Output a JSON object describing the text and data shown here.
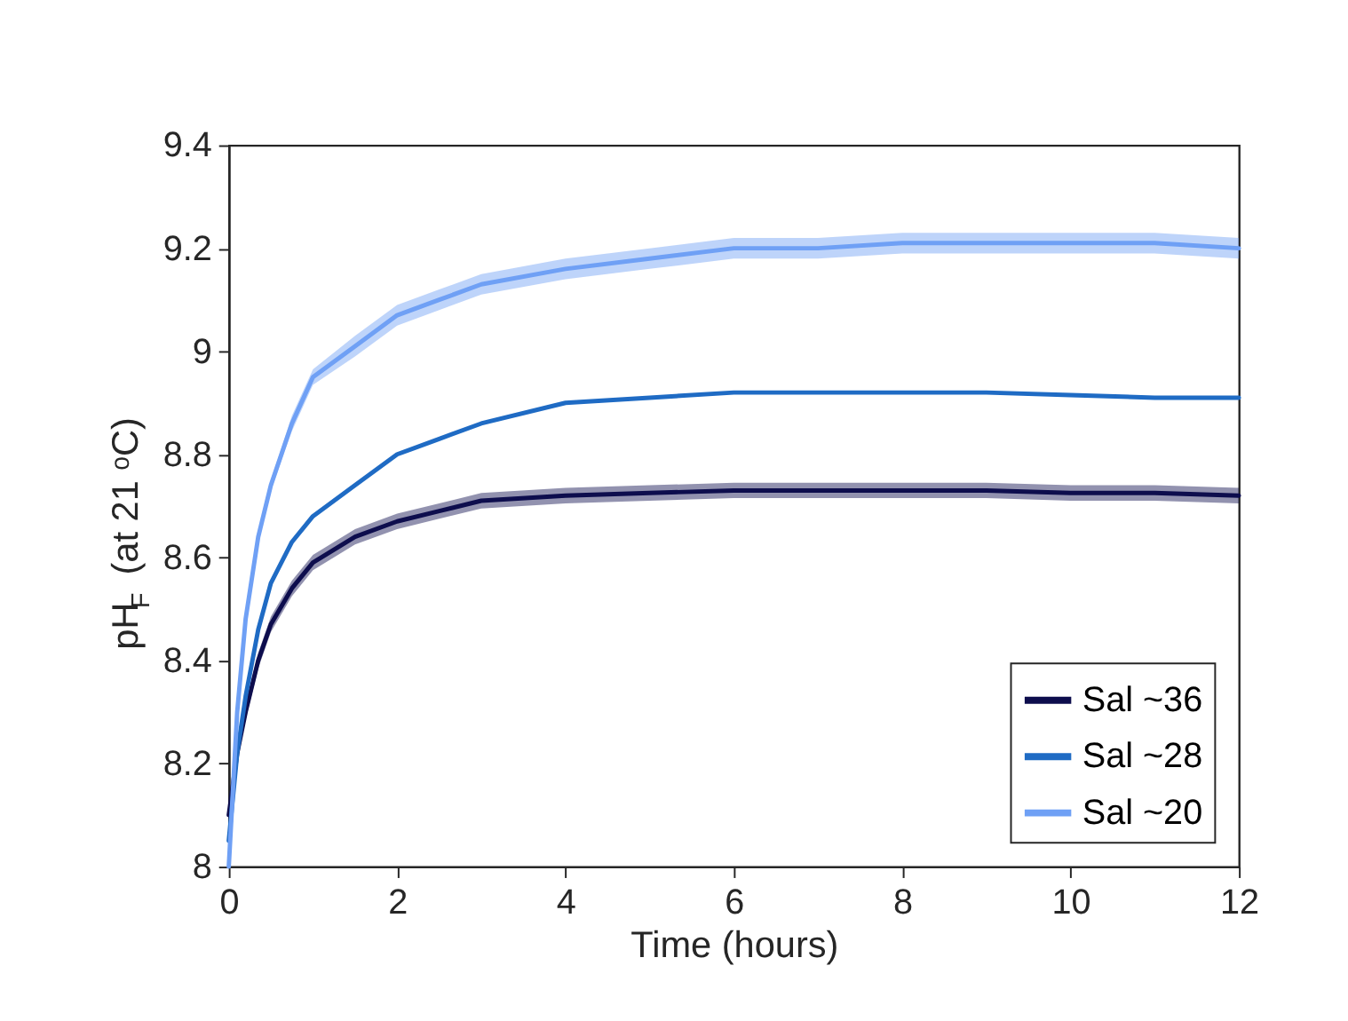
{
  "chart_data": {
    "type": "line",
    "xlabel": "Time (hours)",
    "ylabel": "pH$_{F}$ (at 21 ᵒC)",
    "x": [
      0,
      0.1,
      0.2,
      0.35,
      0.5,
      0.75,
      1,
      1.5,
      2,
      2.5,
      3,
      4,
      5,
      6,
      7,
      8,
      9,
      10,
      11,
      12
    ],
    "series": [
      {
        "name": "Sal ~36",
        "color": "#0d0d4d",
        "values": [
          8.1,
          8.22,
          8.3,
          8.4,
          8.47,
          8.54,
          8.59,
          8.64,
          8.67,
          8.69,
          8.71,
          8.72,
          8.725,
          8.73,
          8.73,
          8.73,
          8.73,
          8.725,
          8.725,
          8.72
        ],
        "lower": [
          8.09,
          8.205,
          8.285,
          8.385,
          8.455,
          8.525,
          8.575,
          8.625,
          8.655,
          8.675,
          8.695,
          8.705,
          8.71,
          8.715,
          8.715,
          8.715,
          8.715,
          8.71,
          8.71,
          8.705
        ],
        "upper": [
          8.11,
          8.235,
          8.315,
          8.415,
          8.485,
          8.555,
          8.605,
          8.655,
          8.685,
          8.705,
          8.725,
          8.735,
          8.74,
          8.745,
          8.745,
          8.745,
          8.745,
          8.74,
          8.74,
          8.735
        ]
      },
      {
        "name": "Sal ~28",
        "color": "#1f6bc4",
        "values": [
          8.05,
          8.22,
          8.33,
          8.46,
          8.55,
          8.63,
          8.68,
          8.74,
          8.8,
          8.83,
          8.86,
          8.9,
          8.91,
          8.92,
          8.92,
          8.92,
          8.92,
          8.915,
          8.91,
          8.91
        ]
      },
      {
        "name": "Sal ~20",
        "color": "#6fa0f5",
        "values": [
          8.0,
          8.3,
          8.48,
          8.64,
          8.74,
          8.86,
          8.95,
          9.01,
          9.07,
          9.1,
          9.13,
          9.16,
          9.18,
          9.2,
          9.2,
          9.21,
          9.21,
          9.21,
          9.21,
          9.2
        ],
        "lower": [
          8.0,
          8.29,
          8.47,
          8.63,
          8.73,
          8.845,
          8.935,
          8.99,
          9.05,
          9.08,
          9.11,
          9.14,
          9.16,
          9.18,
          9.18,
          9.19,
          9.19,
          9.19,
          9.19,
          9.18
        ],
        "upper": [
          8.01,
          8.31,
          8.49,
          8.65,
          8.75,
          8.875,
          8.965,
          9.03,
          9.09,
          9.12,
          9.15,
          9.18,
          9.2,
          9.22,
          9.22,
          9.23,
          9.23,
          9.23,
          9.23,
          9.22
        ]
      }
    ],
    "xlim": [
      0,
      12
    ],
    "xticks": [
      0,
      2,
      4,
      6,
      8,
      10,
      12
    ],
    "ylim": [
      8,
      9.4
    ],
    "yticks": [
      8,
      8.2,
      8.4,
      8.6,
      8.8,
      9,
      9.2,
      9.4
    ],
    "grid": false,
    "legend": "bottom right",
    "marker": "none",
    "line_style": "solid"
  }
}
